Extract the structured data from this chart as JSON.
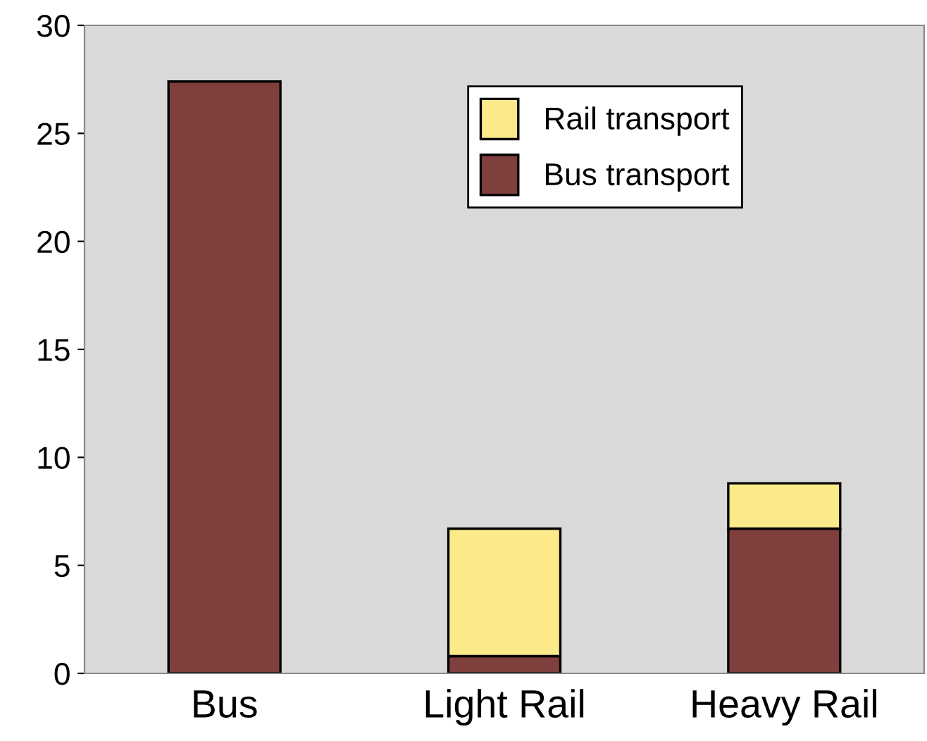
{
  "chart_data": {
    "type": "bar",
    "stacked": true,
    "categories": [
      "Bus",
      "Light Rail",
      "Heavy Rail"
    ],
    "series": [
      {
        "name": "Bus transport",
        "color": "#7f403d",
        "values": [
          27.4,
          0.8,
          6.7
        ]
      },
      {
        "name": "Rail transport",
        "color": "#fbe98a",
        "values": [
          null,
          5.9,
          2.1
        ]
      }
    ],
    "ylim": [
      0,
      30
    ],
    "yticks": [
      0,
      5,
      10,
      15,
      20,
      25,
      30
    ],
    "grid": false,
    "legend": "top"
  }
}
